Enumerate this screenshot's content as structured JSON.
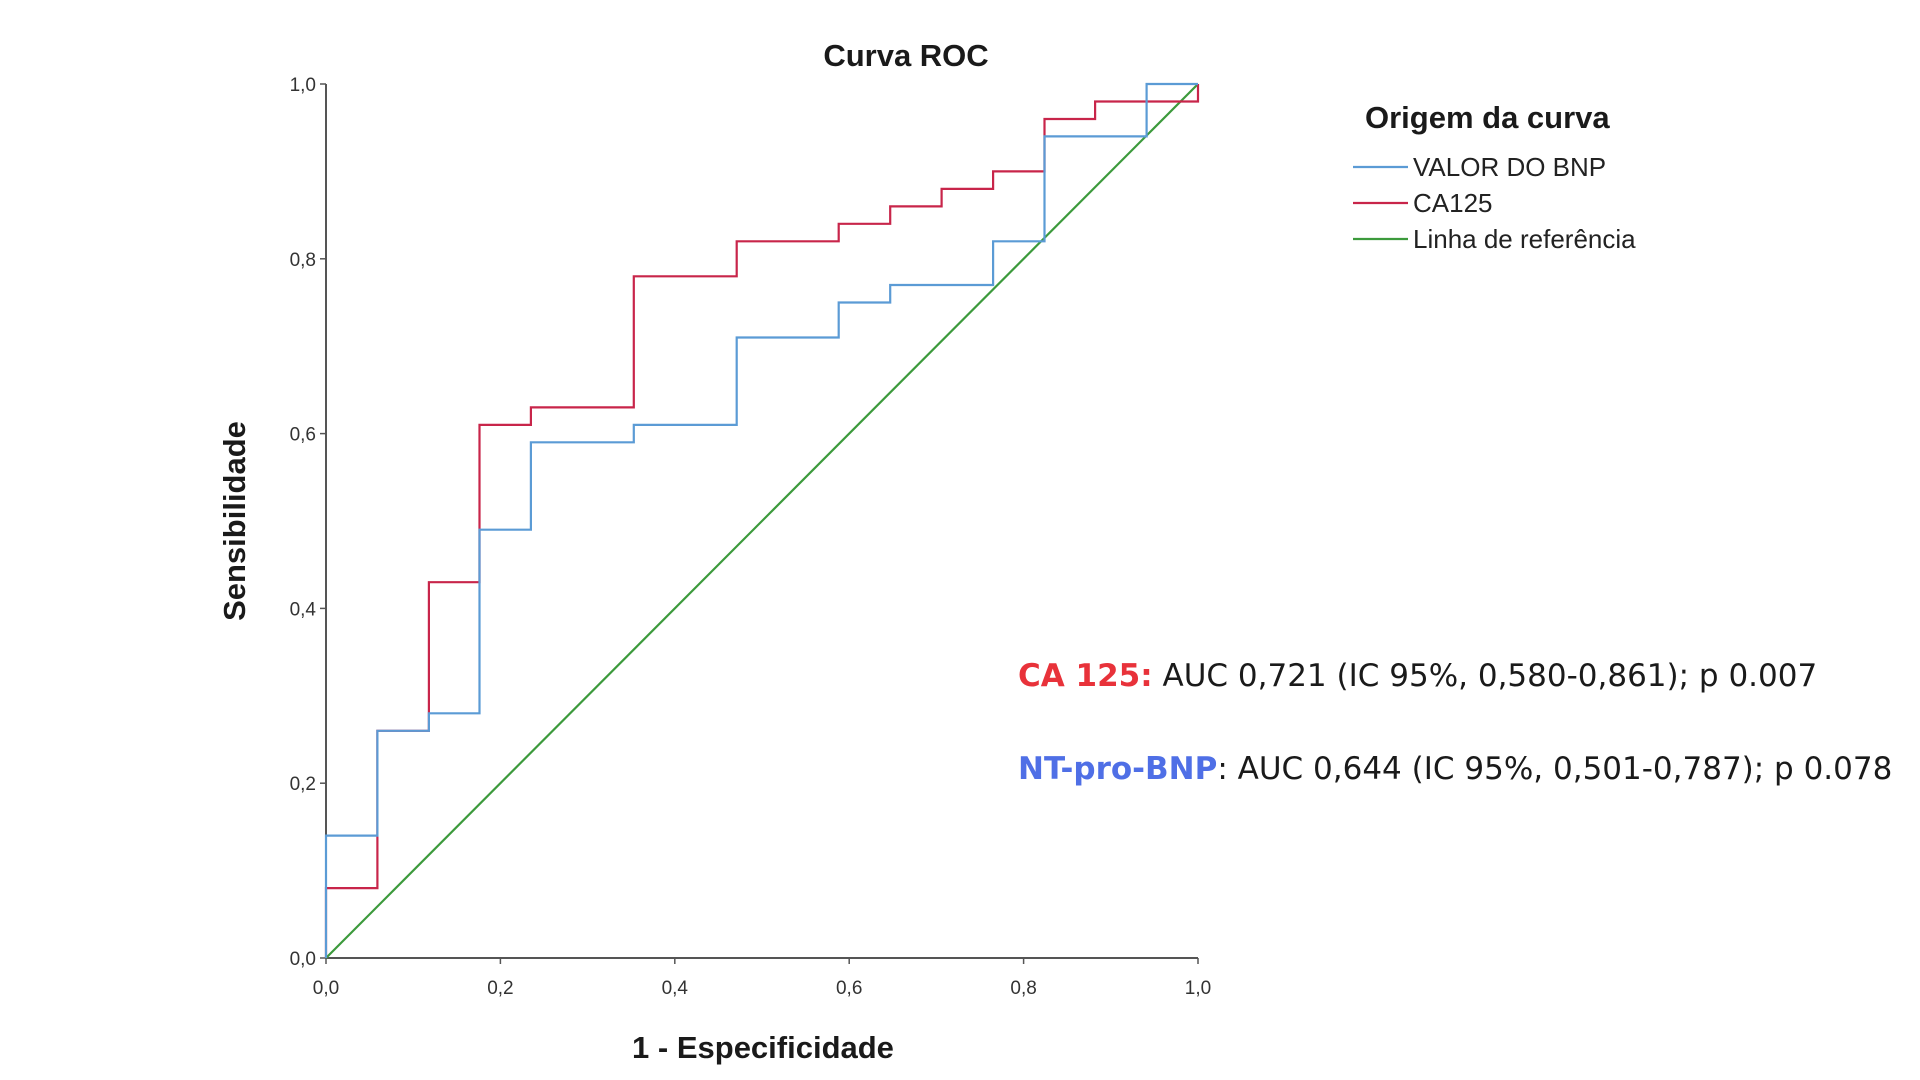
{
  "chart_data": {
    "type": "line",
    "title": "Curva ROC",
    "xlabel": "1 - Especificidade",
    "ylabel": "Sensibilidade",
    "xlim": [
      0,
      1
    ],
    "ylim": [
      0,
      1
    ],
    "x_ticks": [
      "0,0",
      "0,2",
      "0,4",
      "0,6",
      "0,8",
      "1,0"
    ],
    "y_ticks": [
      "0,0",
      "0,2",
      "0,4",
      "0,6",
      "0,8",
      "1,0"
    ],
    "grid": false,
    "legend": {
      "title": "Origem da curva",
      "placement": "top-right"
    },
    "series": [
      {
        "name": "VALOR DO BNP",
        "color": "#5b9bd5",
        "points": [
          [
            0,
            0
          ],
          [
            0,
            0.14
          ],
          [
            0.059,
            0.14
          ],
          [
            0.059,
            0.26
          ],
          [
            0.118,
            0.26
          ],
          [
            0.118,
            0.28
          ],
          [
            0.176,
            0.28
          ],
          [
            0.176,
            0.49
          ],
          [
            0.235,
            0.49
          ],
          [
            0.235,
            0.59
          ],
          [
            0.353,
            0.59
          ],
          [
            0.353,
            0.61
          ],
          [
            0.471,
            0.61
          ],
          [
            0.471,
            0.71
          ],
          [
            0.588,
            0.71
          ],
          [
            0.588,
            0.75
          ],
          [
            0.647,
            0.75
          ],
          [
            0.647,
            0.77
          ],
          [
            0.765,
            0.77
          ],
          [
            0.765,
            0.82
          ],
          [
            0.824,
            0.82
          ],
          [
            0.824,
            0.94
          ],
          [
            0.941,
            0.94
          ],
          [
            0.941,
            1.0
          ],
          [
            1.0,
            1.0
          ]
        ]
      },
      {
        "name": "CA125",
        "color": "#c8254a",
        "points": [
          [
            0,
            0
          ],
          [
            0,
            0.08
          ],
          [
            0.059,
            0.08
          ],
          [
            0.059,
            0.26
          ],
          [
            0.118,
            0.26
          ],
          [
            0.118,
            0.43
          ],
          [
            0.176,
            0.43
          ],
          [
            0.176,
            0.61
          ],
          [
            0.235,
            0.61
          ],
          [
            0.235,
            0.63
          ],
          [
            0.353,
            0.63
          ],
          [
            0.353,
            0.78
          ],
          [
            0.471,
            0.78
          ],
          [
            0.471,
            0.82
          ],
          [
            0.588,
            0.82
          ],
          [
            0.588,
            0.84
          ],
          [
            0.647,
            0.84
          ],
          [
            0.647,
            0.86
          ],
          [
            0.706,
            0.86
          ],
          [
            0.706,
            0.88
          ],
          [
            0.765,
            0.88
          ],
          [
            0.765,
            0.9
          ],
          [
            0.824,
            0.9
          ],
          [
            0.824,
            0.96
          ],
          [
            0.882,
            0.96
          ],
          [
            0.882,
            0.98
          ],
          [
            1.0,
            0.98
          ],
          [
            1.0,
            1.0
          ]
        ]
      },
      {
        "name": "Linha de referência",
        "color": "#3c9a3c",
        "points": [
          [
            0,
            0
          ],
          [
            1,
            1
          ]
        ]
      }
    ],
    "annotations": [
      {
        "lead": "CA 125:",
        "lead_color": "#e8323a",
        "text": " AUC 0,721 (IC 95%, 0,580-0,861); p 0.007"
      },
      {
        "lead": "NT-pro-BNP",
        "lead_color": "#4f6fe6",
        "text": ": AUC 0,644  (IC 95%, 0,501-0,787); p 0.078"
      }
    ]
  }
}
